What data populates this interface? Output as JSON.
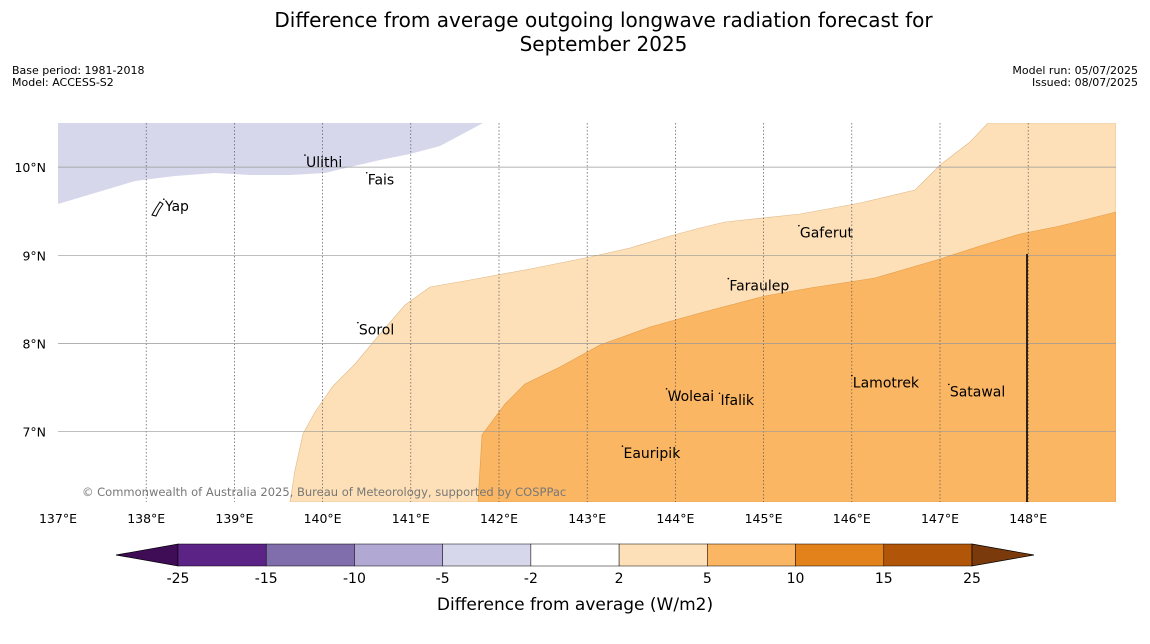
{
  "title": {
    "line1": "Difference from average outgoing longwave radiation forecast for",
    "line2": "September 2025"
  },
  "meta_left": {
    "base_period": "Base period: 1981-2018",
    "model": "Model: ACCESS-S2"
  },
  "meta_right": {
    "model_run": "Model run: 05/07/2025",
    "issued": "Issued: 08/07/2025"
  },
  "map": {
    "lon_ticks": [
      "137°E",
      "138°E",
      "139°E",
      "140°E",
      "141°E",
      "142°E",
      "143°E",
      "144°E",
      "145°E",
      "146°E",
      "147°E",
      "148°E"
    ],
    "lat_ticks": [
      "10°N",
      "9°N",
      "8°N",
      "7°N"
    ],
    "places": [
      {
        "name": "Yap",
        "lon": 138.2,
        "lat": 9.5
      },
      {
        "name": "Ulithi",
        "lon": 139.8,
        "lat": 10.0
      },
      {
        "name": "Fais",
        "lon": 140.5,
        "lat": 9.8
      },
      {
        "name": "Gaferut",
        "lon": 145.4,
        "lat": 9.2
      },
      {
        "name": "Faraulep",
        "lon": 144.6,
        "lat": 8.6
      },
      {
        "name": "Sorol",
        "lon": 140.4,
        "lat": 8.1
      },
      {
        "name": "Woleai",
        "lon": 143.9,
        "lat": 7.35
      },
      {
        "name": "Ifalik",
        "lon": 144.5,
        "lat": 7.3
      },
      {
        "name": "Lamotrek",
        "lon": 146.0,
        "lat": 7.5
      },
      {
        "name": "Satawal",
        "lon": 147.1,
        "lat": 7.4
      },
      {
        "name": "Eauripik",
        "lon": 143.4,
        "lat": 6.7
      }
    ],
    "copyright": "© Commonwealth of Australia 2025, Bureau of Meteorology, supported by COSPPac"
  },
  "colorbar": {
    "title": "Difference from average (W/m2)",
    "tick_labels": [
      "-25",
      "-15",
      "-10",
      "-5",
      "-2",
      "2",
      "5",
      "10",
      "15",
      "25"
    ],
    "colors": [
      "#3f0d55",
      "#5a2385",
      "#7f6eab",
      "#b1a8d3",
      "#d6d7ea",
      "#ffffff",
      "#fde0b7",
      "#fbb663",
      "#e3821a",
      "#b15509",
      "#7b3a0c"
    ]
  }
}
